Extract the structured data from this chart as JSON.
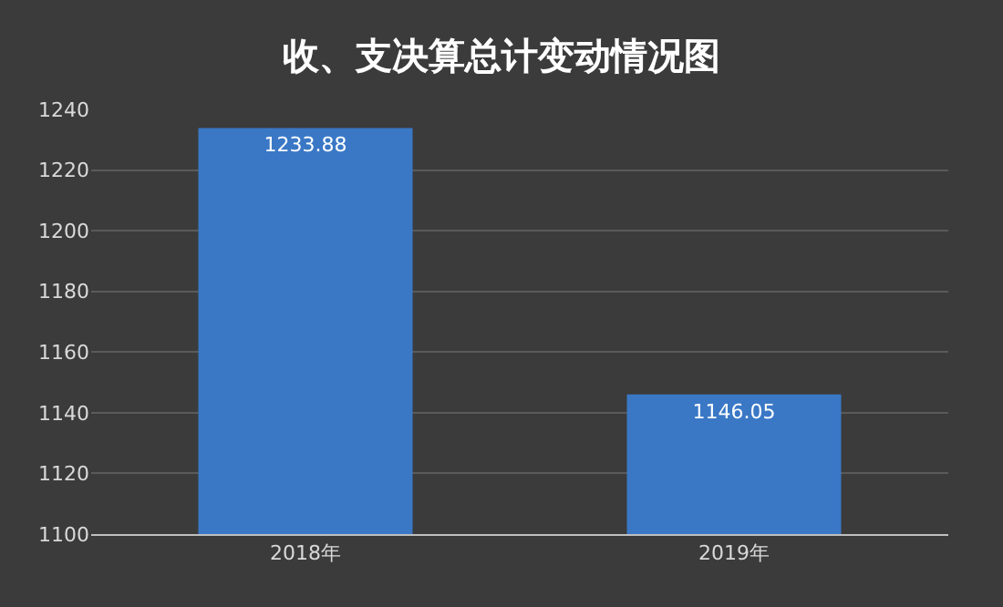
{
  "chart_data": {
    "type": "bar",
    "title": "收、支决算总计变动情况图",
    "categories": [
      "2018年",
      "2019年"
    ],
    "values": [
      1233.88,
      1146.05
    ],
    "color": "#3a78c6",
    "ylim": [
      1100,
      1240
    ],
    "yticks": [
      1100,
      1120,
      1140,
      1160,
      1180,
      1200,
      1220,
      1240
    ],
    "grid": "y",
    "data_labels": true,
    "legend": false
  }
}
